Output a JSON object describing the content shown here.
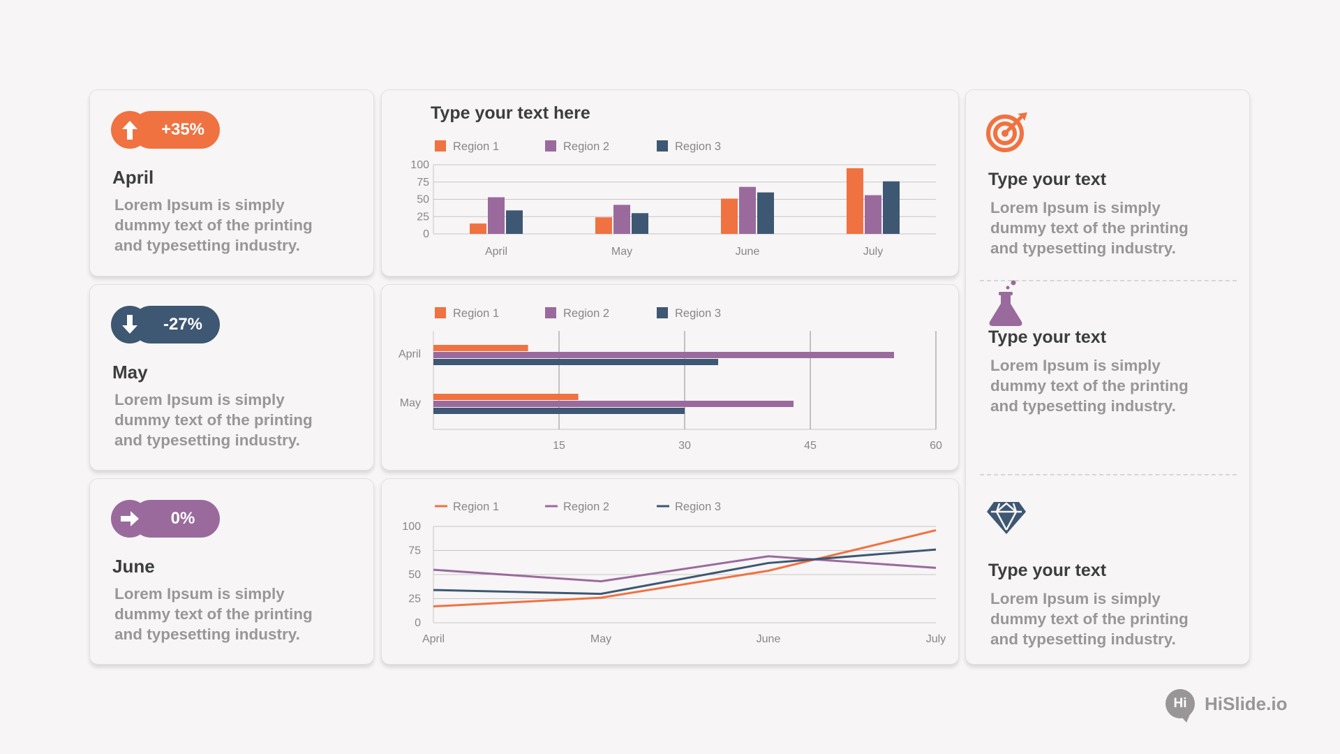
{
  "colors": {
    "region1": "#f07240",
    "region2": "#9a6a9d",
    "region3": "#3e5772",
    "muted": "#9a9698"
  },
  "kpis": [
    {
      "value": "+35%",
      "title": "April",
      "desc": "Lorem Ipsum is simply dummy text of the printing and typesetting industry.",
      "icon": "arrow-up-icon",
      "color": "#f07240"
    },
    {
      "value": "-27%",
      "title": "May",
      "desc": "Lorem Ipsum is simply dummy text of the printing and typesetting industry.",
      "icon": "arrow-down-icon",
      "color": "#3e5772"
    },
    {
      "value": "0%",
      "title": "June",
      "desc": "Lorem Ipsum is simply dummy text of the printing and typesetting industry.",
      "icon": "arrow-right-icon",
      "color": "#9a6a9d"
    }
  ],
  "features": [
    {
      "title": "Type your text",
      "desc": "Lorem Ipsum is simply dummy text of the printing and typesetting industry.",
      "icon": "target-icon"
    },
    {
      "title": "Type your text",
      "desc": "Lorem Ipsum is simply dummy text of the printing and typesetting industry.",
      "icon": "flask-icon"
    },
    {
      "title": "Type your text",
      "desc": "Lorem Ipsum is simply dummy text of the printing and typesetting industry.",
      "icon": "diamond-icon"
    }
  ],
  "brand": {
    "logo": "Hi",
    "name": "HiSlide.io"
  },
  "chart_data": [
    {
      "type": "bar",
      "title": "Type your text here",
      "categories": [
        "April",
        "May",
        "June",
        "July"
      ],
      "series": [
        {
          "name": "Region 1",
          "values": [
            15,
            24,
            51,
            95
          ]
        },
        {
          "name": "Region 2",
          "values": [
            53,
            42,
            68,
            56
          ]
        },
        {
          "name": "Region 3",
          "values": [
            34,
            30,
            60,
            76
          ]
        }
      ],
      "ylim": [
        0,
        100
      ],
      "yticks": [
        "0",
        "25",
        "50",
        "75",
        "100"
      ],
      "legend": "top-left",
      "grid": true
    },
    {
      "type": "bar",
      "orientation": "horizontal",
      "categories": [
        "April",
        "May"
      ],
      "series": [
        {
          "name": "Region 1",
          "values": [
            11.3,
            17.3
          ]
        },
        {
          "name": "Region 2",
          "values": [
            55,
            43
          ]
        },
        {
          "name": "Region 3",
          "values": [
            34,
            30
          ]
        }
      ],
      "xlim": [
        0,
        60
      ],
      "xticks": [
        "15",
        "30",
        "45",
        "60"
      ],
      "legend": "top-left",
      "grid": true
    },
    {
      "type": "line",
      "categories": [
        "April",
        "May",
        "June",
        "July"
      ],
      "series": [
        {
          "name": "Region 1",
          "values": [
            17,
            26,
            54,
            96
          ]
        },
        {
          "name": "Region 2",
          "values": [
            55,
            43,
            69,
            57
          ]
        },
        {
          "name": "Region 3",
          "values": [
            34,
            30,
            62,
            76
          ]
        }
      ],
      "ylim": [
        0,
        100
      ],
      "yticks": [
        "0",
        "25",
        "50",
        "75",
        "100"
      ],
      "legend": "top-left",
      "grid": true
    }
  ]
}
